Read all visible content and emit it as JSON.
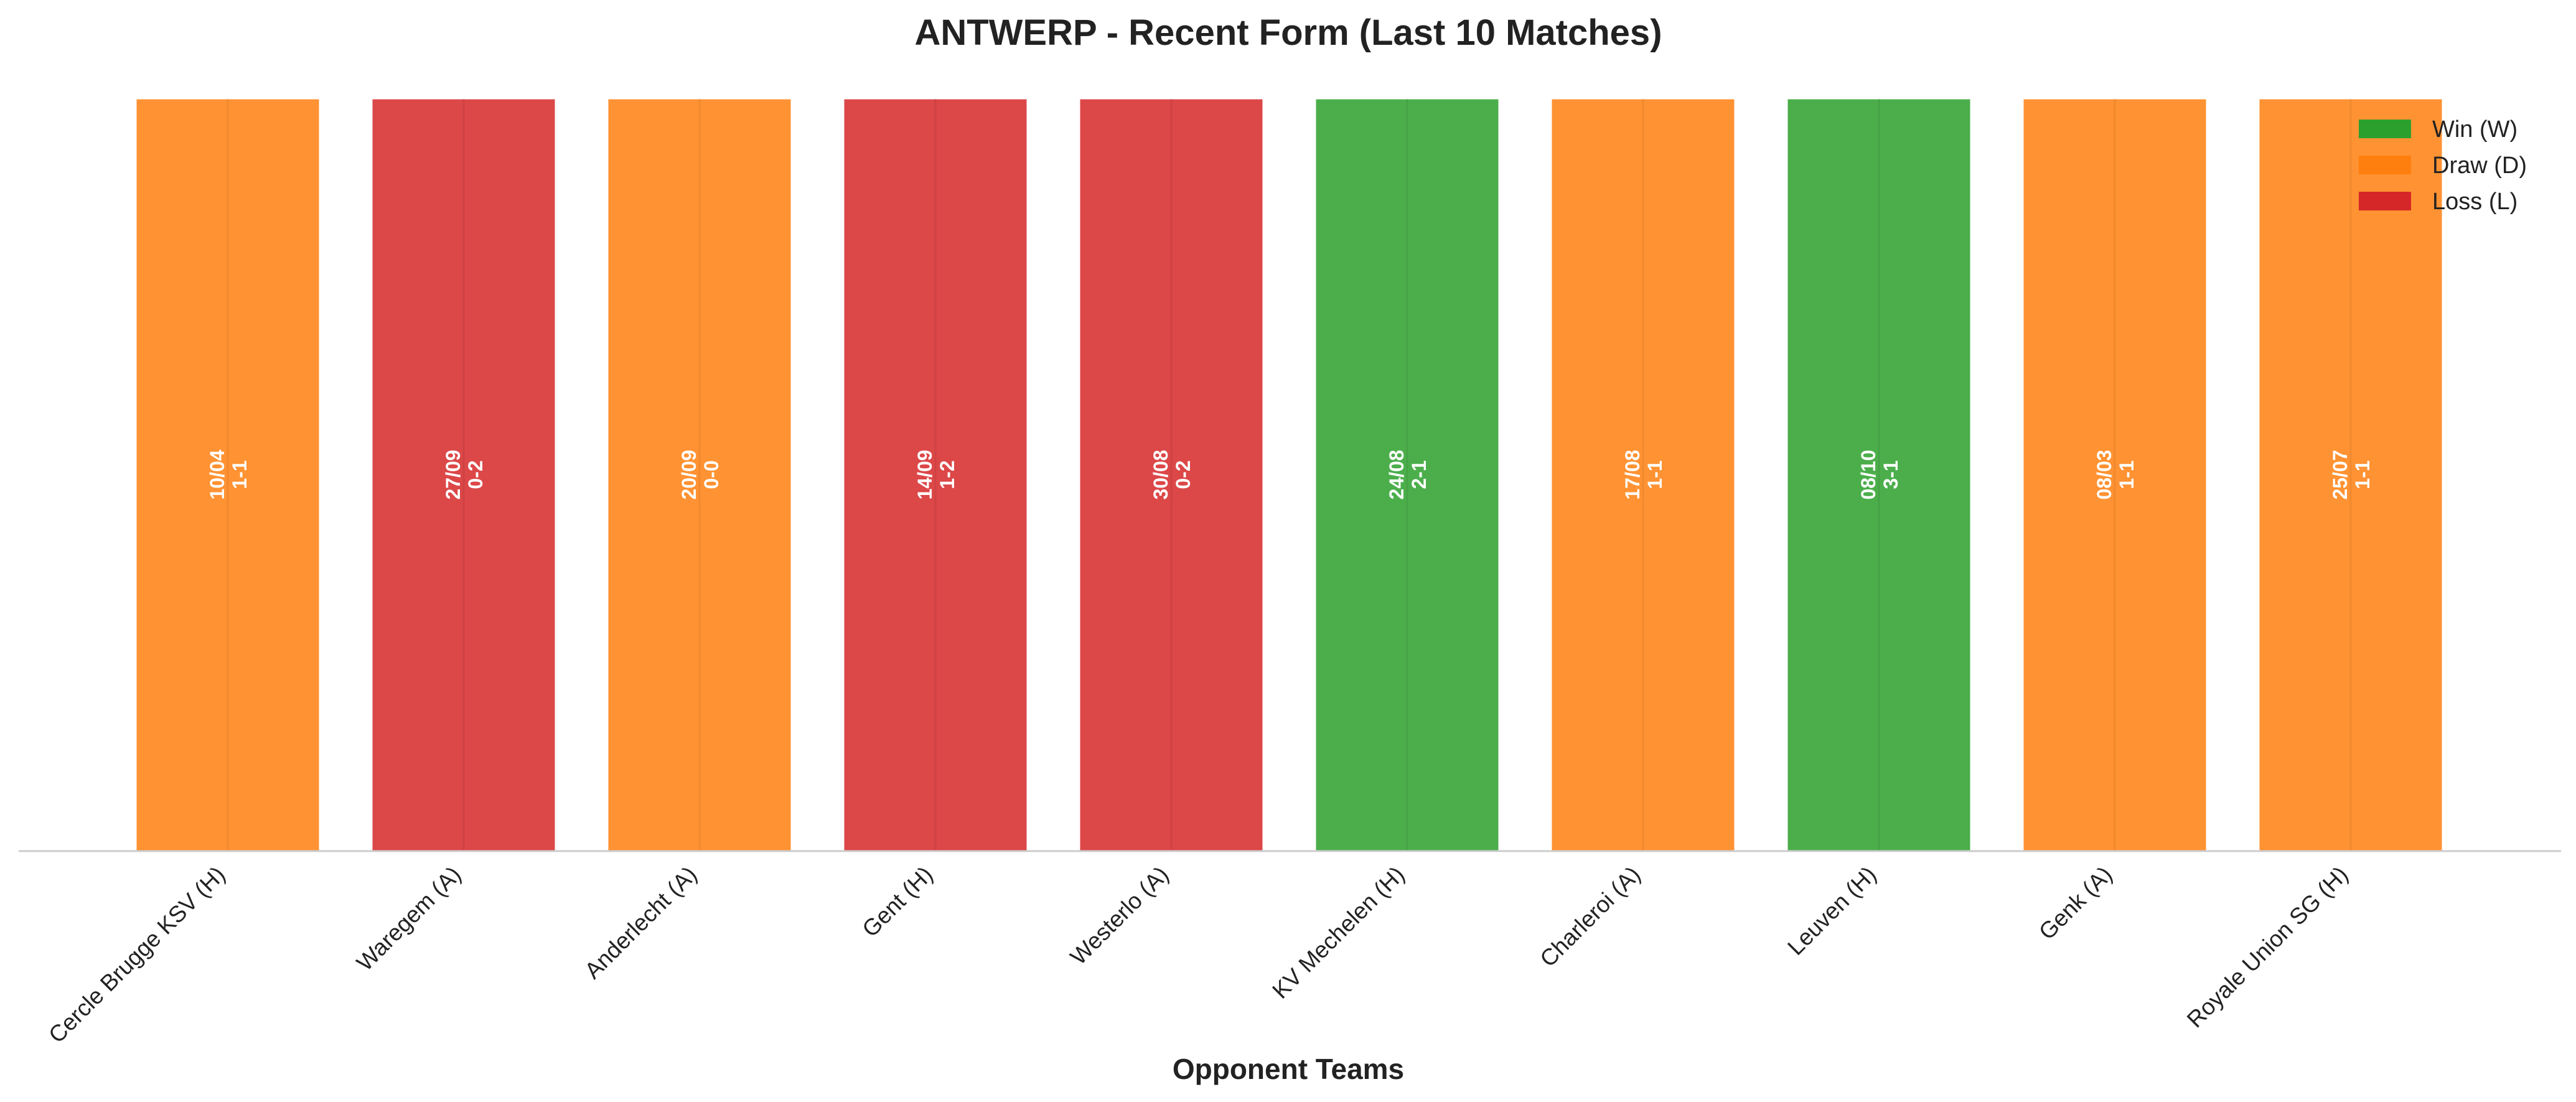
{
  "chart_data": {
    "type": "bar",
    "title": "ANTWERP - Recent Form (Last 10 Matches)",
    "xlabel": "Opponent Teams",
    "ylabel": "",
    "ylim": [
      0,
      1
    ],
    "grid": false,
    "legend_position": "top-right",
    "categories": [
      "Cercle Brugge KSV (H)",
      "Waregem (A)",
      "Anderlecht (A)",
      "Gent (H)",
      "Westerlo (A)",
      "KV Mechelen (H)",
      "Charleroi (A)",
      "Leuven (H)",
      "Genk (A)",
      "Royale Union SG (H)"
    ],
    "values": [
      1,
      1,
      1,
      1,
      1,
      1,
      1,
      1,
      1,
      1
    ],
    "results": [
      "D",
      "L",
      "D",
      "L",
      "L",
      "W",
      "D",
      "W",
      "D",
      "D"
    ],
    "dates": [
      "10/04",
      "27/09",
      "20/09",
      "14/09",
      "30/08",
      "24/08",
      "17/08",
      "08/10",
      "08/03",
      "25/07"
    ],
    "scores": [
      "1-1",
      "0-2",
      "0-0",
      "1-2",
      "0-2",
      "2-1",
      "1-1",
      "3-1",
      "1-1",
      "1-1"
    ],
    "legend": [
      {
        "key": "W",
        "label": "Win (W)",
        "color": "#2ca02c"
      },
      {
        "key": "D",
        "label": "Draw (D)",
        "color": "#ff7f0e"
      },
      {
        "key": "L",
        "label": "Loss (L)",
        "color": "#d62728"
      }
    ]
  }
}
